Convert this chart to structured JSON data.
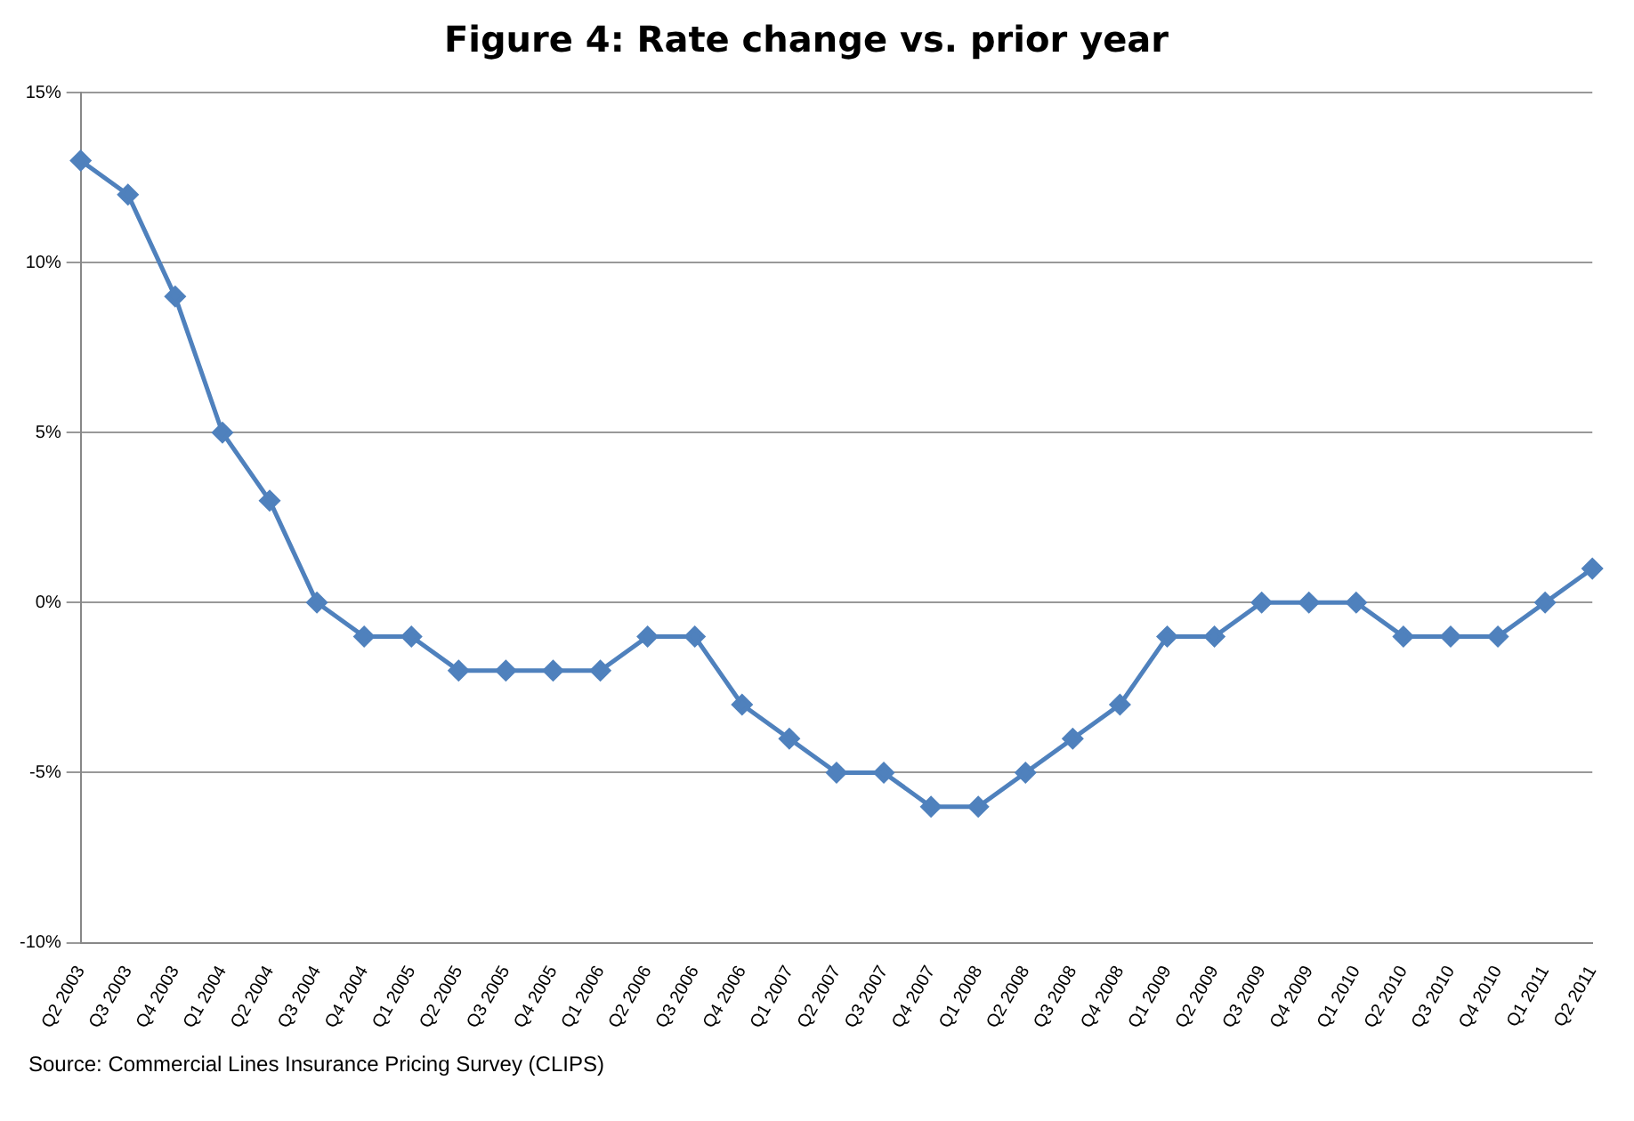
{
  "chart_data": {
    "type": "line",
    "title": "Figure 4: Rate change vs. prior year",
    "categories": [
      "Q2 2003",
      "Q3 2003",
      "Q4 2003",
      "Q1 2004",
      "Q2 2004",
      "Q3 2004",
      "Q4 2004",
      "Q1 2005",
      "Q2 2005",
      "Q3 2005",
      "Q4 2005",
      "Q1 2006",
      "Q2 2006",
      "Q3 2006",
      "Q4 2006",
      "Q1 2007",
      "Q2 2007",
      "Q3 2007",
      "Q4 2007",
      "Q1 2008",
      "Q2 2008",
      "Q3 2008",
      "Q4 2008",
      "Q1 2009",
      "Q2 2009",
      "Q3 2009",
      "Q4 2009",
      "Q1 2010",
      "Q2 2010",
      "Q3 2010",
      "Q4 2010",
      "Q1 2011",
      "Q2 2011"
    ],
    "values": [
      13,
      12,
      9,
      5,
      3,
      0,
      -1,
      -1,
      -2,
      -2,
      -2,
      -2,
      -1,
      -1,
      -3,
      -4,
      -5,
      -5,
      -6,
      -6,
      -5,
      -4,
      -3,
      -1,
      -1,
      0,
      0,
      0,
      -1,
      -1,
      -1,
      0,
      1
    ],
    "color": "#4f81bd",
    "marker": "diamond",
    "line_style": "solid",
    "grid": "y",
    "legend": false,
    "ylim": [
      -10,
      15
    ],
    "yticks": [
      {
        "value": -10,
        "label": "-10%"
      },
      {
        "value": -5,
        "label": "-5%"
      },
      {
        "value": 0,
        "label": "0%"
      },
      {
        "value": 5,
        "label": "5%"
      },
      {
        "value": 10,
        "label": "10%"
      },
      {
        "value": 15,
        "label": "15%"
      }
    ],
    "annotations": [
      "Source: Commercial Lines Insurance Pricing Survey (CLIPS)"
    ]
  }
}
